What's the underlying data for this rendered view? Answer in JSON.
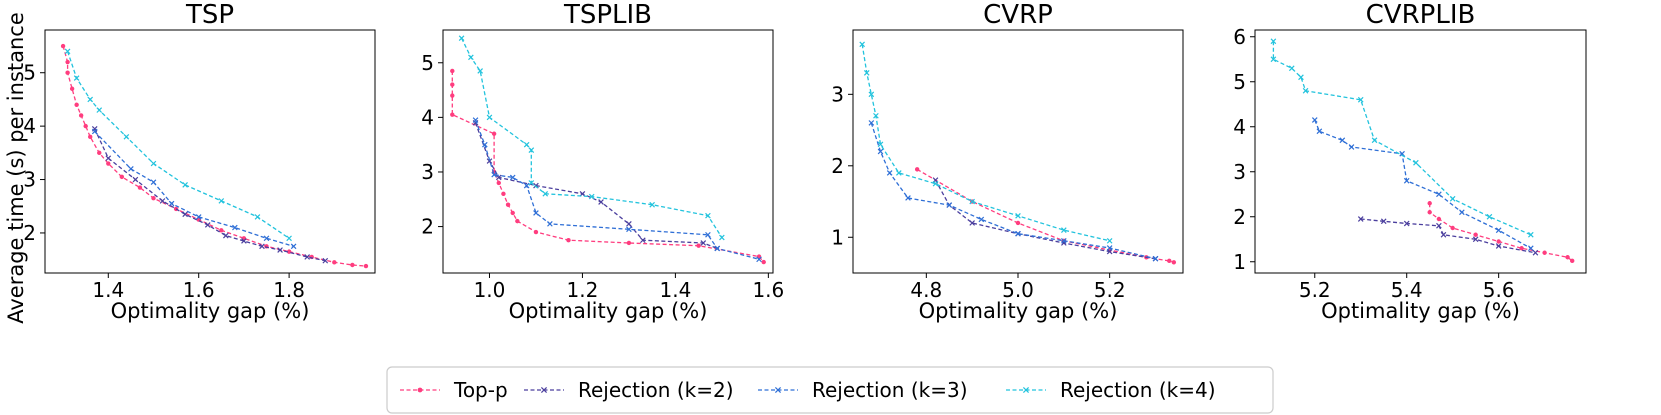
{
  "figure": {
    "ylabel_shared": "Average time (s) per instance",
    "legend": [
      {
        "label": "Top-p",
        "color": "#ff3d7f",
        "marker": "dot"
      },
      {
        "label": "Rejection (k=2)",
        "color": "#4b3f9e",
        "marker": "x"
      },
      {
        "label": "Rejection (k=3)",
        "color": "#2f6fd6",
        "marker": "x"
      },
      {
        "label": "Rejection (k=4)",
        "color": "#22c3dd",
        "marker": "x"
      }
    ]
  },
  "chart_data": [
    {
      "type": "line",
      "title": "TSP",
      "xlabel": "Optimality gap (%)",
      "ylabel": "Average time (s) per instance",
      "xlim": [
        1.26,
        1.99
      ],
      "ylim": [
        1.25,
        5.8
      ],
      "xticks": [
        1.4,
        1.6,
        1.8
      ],
      "xtick_labels": [
        "1.4",
        "1.6",
        "1.8"
      ],
      "yticks": [
        2,
        3,
        4,
        5
      ],
      "ytick_labels": [
        "2",
        "3",
        "4",
        "5"
      ],
      "series": [
        {
          "name": "Top-p",
          "x": [
            1.3,
            1.31,
            1.31,
            1.32,
            1.33,
            1.34,
            1.35,
            1.36,
            1.38,
            1.4,
            1.43,
            1.47,
            1.5,
            1.55,
            1.6,
            1.65,
            1.7,
            1.75,
            1.8,
            1.85,
            1.9,
            1.94,
            1.97
          ],
          "y": [
            5.5,
            5.2,
            5.0,
            4.7,
            4.4,
            4.2,
            4.0,
            3.8,
            3.5,
            3.3,
            3.05,
            2.85,
            2.65,
            2.45,
            2.25,
            2.05,
            1.9,
            1.75,
            1.65,
            1.55,
            1.45,
            1.4,
            1.38
          ]
        },
        {
          "name": "Rejection (k=2)",
          "x": [
            1.37,
            1.4,
            1.46,
            1.52,
            1.57,
            1.62,
            1.66,
            1.7,
            1.74,
            1.78,
            1.84,
            1.88
          ],
          "y": [
            3.95,
            3.4,
            3.0,
            2.6,
            2.35,
            2.15,
            1.95,
            1.85,
            1.75,
            1.68,
            1.55,
            1.48
          ]
        },
        {
          "name": "Rejection (k=3)",
          "x": [
            1.37,
            1.45,
            1.5,
            1.54,
            1.6,
            1.68,
            1.75,
            1.81
          ],
          "y": [
            3.9,
            3.2,
            2.95,
            2.55,
            2.3,
            2.1,
            1.9,
            1.75
          ]
        },
        {
          "name": "Rejection (k=4)",
          "x": [
            1.31,
            1.33,
            1.36,
            1.38,
            1.44,
            1.5,
            1.57,
            1.65,
            1.73,
            1.8
          ],
          "y": [
            5.4,
            4.9,
            4.5,
            4.3,
            3.8,
            3.3,
            2.9,
            2.6,
            2.3,
            1.9
          ]
        }
      ]
    },
    {
      "type": "line",
      "title": "TSPLIB",
      "xlabel": "Optimality gap (%)",
      "ylabel": "",
      "xlim": [
        0.9,
        1.61
      ],
      "ylim": [
        1.15,
        5.6
      ],
      "xticks": [
        1.0,
        1.2,
        1.4,
        1.6
      ],
      "xtick_labels": [
        "1.0",
        "1.2",
        "1.4",
        "1.6"
      ],
      "yticks": [
        2,
        3,
        4,
        5
      ],
      "ytick_labels": [
        "2",
        "3",
        "4",
        "5"
      ],
      "series": [
        {
          "name": "Top-p",
          "x": [
            0.92,
            0.92,
            0.92,
            0.92,
            1.01,
            1.01,
            1.02,
            1.03,
            1.04,
            1.05,
            1.06,
            1.1,
            1.17,
            1.3,
            1.45,
            1.58,
            1.59
          ],
          "y": [
            4.85,
            4.6,
            4.4,
            4.05,
            3.7,
            3.0,
            2.8,
            2.6,
            2.4,
            2.25,
            2.1,
            1.9,
            1.75,
            1.7,
            1.65,
            1.45,
            1.35
          ]
        },
        {
          "name": "Rejection (k=2)",
          "x": [
            0.97,
            1.0,
            1.02,
            1.1,
            1.2,
            1.24,
            1.3,
            1.33,
            1.46,
            1.49
          ],
          "y": [
            3.9,
            3.2,
            2.9,
            2.75,
            2.6,
            2.45,
            2.05,
            1.75,
            1.7,
            1.6
          ]
        },
        {
          "name": "Rejection (k=3)",
          "x": [
            0.97,
            0.99,
            1.01,
            1.05,
            1.08,
            1.1,
            1.13,
            1.3,
            1.47,
            1.49,
            1.58
          ],
          "y": [
            3.95,
            3.5,
            2.95,
            2.9,
            2.75,
            2.25,
            2.05,
            1.95,
            1.85,
            1.6,
            1.4
          ]
        },
        {
          "name": "Rejection (k=4)",
          "x": [
            0.94,
            0.96,
            0.98,
            1.0,
            1.08,
            1.09,
            1.09,
            1.12,
            1.22,
            1.35,
            1.47,
            1.5
          ],
          "y": [
            5.45,
            5.1,
            4.85,
            4.0,
            3.5,
            3.4,
            2.8,
            2.6,
            2.55,
            2.4,
            2.2,
            1.8
          ]
        }
      ]
    },
    {
      "type": "line",
      "title": "CVRP",
      "xlabel": "Optimality gap (%)",
      "ylabel": "",
      "xlim": [
        4.64,
        5.36
      ],
      "ylim": [
        0.5,
        3.9
      ],
      "xticks": [
        4.8,
        5.0,
        5.2
      ],
      "xtick_labels": [
        "4.8",
        "5.0",
        "5.2"
      ],
      "yticks": [
        1,
        2,
        3
      ],
      "ytick_labels": [
        "1",
        "2",
        "3"
      ],
      "series": [
        {
          "name": "Top-p",
          "x": [
            4.78,
            4.9,
            5.0,
            5.1,
            5.2,
            5.28,
            5.33,
            5.34
          ],
          "y": [
            1.95,
            1.5,
            1.2,
            0.95,
            0.82,
            0.72,
            0.67,
            0.65
          ]
        },
        {
          "name": "Rejection (k=2)",
          "x": [
            4.82,
            4.85,
            4.9,
            5.0,
            5.1,
            5.2,
            5.3
          ],
          "y": [
            1.8,
            1.45,
            1.2,
            1.05,
            0.92,
            0.8,
            0.7
          ]
        },
        {
          "name": "Rejection (k=3)",
          "x": [
            4.68,
            4.7,
            4.72,
            4.76,
            4.85,
            4.92,
            5.0,
            5.1,
            5.2,
            5.3
          ],
          "y": [
            2.6,
            2.2,
            1.9,
            1.55,
            1.45,
            1.25,
            1.05,
            0.95,
            0.85,
            0.7
          ]
        },
        {
          "name": "Rejection (k=4)",
          "x": [
            4.66,
            4.67,
            4.68,
            4.69,
            4.7,
            4.74,
            4.82,
            4.9,
            5.0,
            5.1,
            5.2
          ],
          "y": [
            3.7,
            3.3,
            3.0,
            2.7,
            2.3,
            1.9,
            1.75,
            1.5,
            1.3,
            1.1,
            0.95
          ]
        }
      ]
    },
    {
      "type": "line",
      "title": "CVRPLIB",
      "xlabel": "Optimality gap (%)",
      "ylabel": "",
      "xlim": [
        5.07,
        5.79
      ],
      "ylim": [
        0.75,
        6.15
      ],
      "xticks": [
        5.2,
        5.4,
        5.6
      ],
      "xtick_labels": [
        "5.2",
        "5.4",
        "5.6"
      ],
      "yticks": [
        1,
        2,
        3,
        4,
        5,
        6
      ],
      "ytick_labels": [
        "1",
        "2",
        "3",
        "4",
        "5",
        "6"
      ],
      "series": [
        {
          "name": "Top-p",
          "x": [
            5.45,
            5.45,
            5.47,
            5.5,
            5.55,
            5.6,
            5.65,
            5.7,
            5.75,
            5.76
          ],
          "y": [
            2.3,
            2.1,
            1.95,
            1.75,
            1.6,
            1.45,
            1.3,
            1.2,
            1.1,
            1.02
          ]
        },
        {
          "name": "Rejection (k=2)",
          "x": [
            5.3,
            5.35,
            5.4,
            5.47,
            5.48,
            5.55,
            5.6,
            5.68
          ],
          "y": [
            1.95,
            1.9,
            1.85,
            1.8,
            1.6,
            1.5,
            1.35,
            1.2
          ]
        },
        {
          "name": "Rejection (k=3)",
          "x": [
            5.2,
            5.21,
            5.26,
            5.28,
            5.39,
            5.4,
            5.47,
            5.52,
            5.6,
            5.67
          ],
          "y": [
            4.15,
            3.9,
            3.7,
            3.55,
            3.4,
            2.8,
            2.5,
            2.1,
            1.7,
            1.3
          ]
        },
        {
          "name": "Rejection (k=4)",
          "x": [
            5.11,
            5.11,
            5.15,
            5.17,
            5.18,
            5.3,
            5.33,
            5.42,
            5.5,
            5.58,
            5.67
          ],
          "y": [
            5.9,
            5.5,
            5.3,
            5.1,
            4.8,
            4.6,
            3.7,
            3.2,
            2.4,
            2.0,
            1.6
          ]
        }
      ]
    }
  ]
}
